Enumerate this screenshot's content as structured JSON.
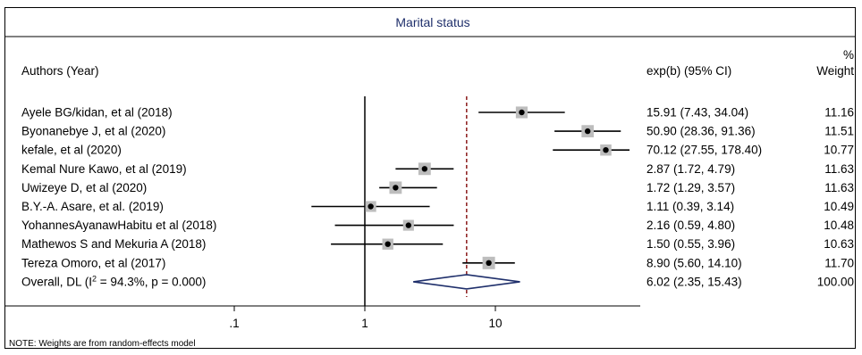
{
  "chart_data": {
    "type": "forest",
    "title": "Marital status",
    "x_scale": "log",
    "x_ticks": [
      {
        "value": 0.1,
        "label": ".1"
      },
      {
        "value": 1,
        "label": "1"
      },
      {
        "value": 10,
        "label": "10"
      }
    ],
    "null_line": 1,
    "pooled_line": 6.02,
    "columns": {
      "authors": "Authors (Year)",
      "estimate": "exp(b) (95% CI)",
      "weight_top": "%",
      "weight": "Weight"
    },
    "studies": [
      {
        "author": "Ayele BG/kidan, et al (2018)",
        "est": 15.91,
        "lo": 7.43,
        "hi": 34.04,
        "ci_text": "15.91 (7.43, 34.04)",
        "weight": 11.16,
        "weight_text": "11.16"
      },
      {
        "author": "Byonanebye J, et al (2020)",
        "est": 50.9,
        "lo": 28.36,
        "hi": 91.36,
        "ci_text": "50.90 (28.36, 91.36)",
        "weight": 11.51,
        "weight_text": "11.51"
      },
      {
        "author": "kefale, et al (2020)",
        "est": 70.12,
        "lo": 27.55,
        "hi": 178.4,
        "ci_text": "70.12 (27.55, 178.40)",
        "weight": 10.77,
        "weight_text": "10.77"
      },
      {
        "author": "Kemal Nure Kawo, et al (2019)",
        "est": 2.87,
        "lo": 1.72,
        "hi": 4.79,
        "ci_text": "2.87 (1.72, 4.79)",
        "weight": 11.63,
        "weight_text": "11.63"
      },
      {
        "author": "Uwizeye D, et al (2020)",
        "est": 1.72,
        "lo": 1.29,
        "hi": 3.57,
        "ci_text": "1.72 (1.29, 3.57)",
        "weight": 11.63,
        "weight_text": "11.63"
      },
      {
        "author": "B.Y.-A. Asare, et al. (2019)",
        "est": 1.11,
        "lo": 0.39,
        "hi": 3.14,
        "ci_text": "1.11 (0.39, 3.14)",
        "weight": 10.49,
        "weight_text": "10.49"
      },
      {
        "author": "YohannesAyanawHabitu et al (2018)",
        "est": 2.16,
        "lo": 0.59,
        "hi": 4.8,
        "ci_text": "2.16 (0.59, 4.80)",
        "weight": 10.48,
        "weight_text": "10.48"
      },
      {
        "author": "Mathewos S and Mekuria A (2018)",
        "est": 1.5,
        "lo": 0.55,
        "hi": 3.96,
        "ci_text": "1.50 (0.55, 3.96)",
        "weight": 10.63,
        "weight_text": "10.63"
      },
      {
        "author": "Tereza Omoro, et al (2017)",
        "est": 8.9,
        "lo": 5.6,
        "hi": 14.1,
        "ci_text": "8.90 (5.60, 14.10)",
        "weight": 11.7,
        "weight_text": "11.70"
      }
    ],
    "overall": {
      "label_prefix": "Overall, DL (I",
      "label_sup": "2",
      "label_suffix": " = 94.3%, p = 0.000)",
      "est": 6.02,
      "lo": 2.35,
      "hi": 15.43,
      "ci_text": "6.02 (2.35, 15.43)",
      "weight_text": "100.00"
    },
    "note": "NOTE: Weights are from random-effects model",
    "colors": {
      "title": "#1f2f6b",
      "diamond": "#1f2f6b",
      "pooled_line": "#8b1a1a",
      "weight_box": "#bdbdbd",
      "point": "#000000"
    }
  }
}
